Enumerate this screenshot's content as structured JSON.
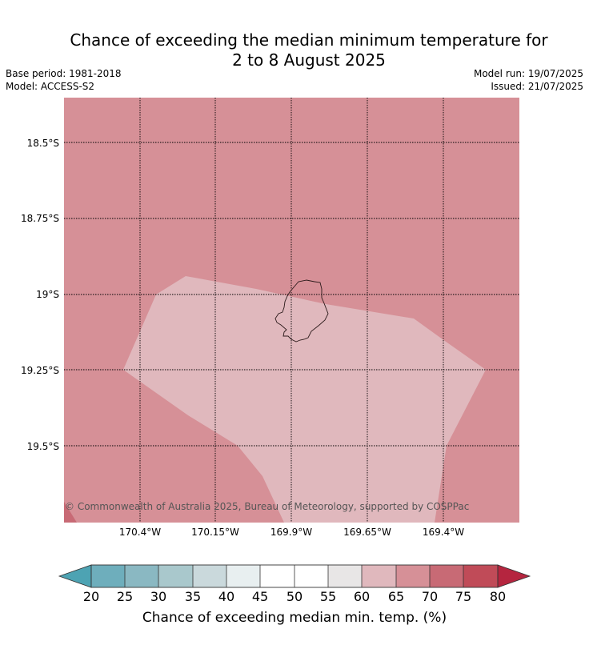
{
  "header": {
    "title_line1": "Chance of exceeding the median minimum temperature for",
    "title_line2": "2 to 8 August 2025",
    "base_period": "Base period: 1981-2018",
    "model": "Model: ACCESS-S2",
    "model_run": "Model run: 19/07/2025",
    "issued": "Issued: 21/07/2025"
  },
  "map": {
    "region_fill": "#d69097",
    "lower_band_fill": "#e0b8bd",
    "copyright": "© Commonwealth of Australia 2025, Bureau of Meteorology, supported by COSPPac",
    "lat_labels": [
      "18.5°S",
      "18.75°S",
      "19°S",
      "19.25°S",
      "19.5°S"
    ],
    "lon_labels": [
      "170.4°W",
      "170.15°W",
      "169.9°W",
      "169.65°W",
      "169.4°W"
    ]
  },
  "colorbar": {
    "label": "Chance of exceeding median min. temp. (%)",
    "ticks": [
      "20",
      "25",
      "30",
      "35",
      "40",
      "45",
      "50",
      "55",
      "60",
      "65",
      "70",
      "75",
      "80"
    ],
    "colors": {
      "under": "#4da3b3",
      "bins": [
        "#6eaebc",
        "#8ab8c2",
        "#a9c8cc",
        "#cad9dc",
        "#e8eff0",
        "#ffffff",
        "#ffffff",
        "#e8e6e6",
        "#e0b8bd",
        "#d69097",
        "#c86a75",
        "#c04b58"
      ],
      "over": "#b5253f"
    }
  }
}
